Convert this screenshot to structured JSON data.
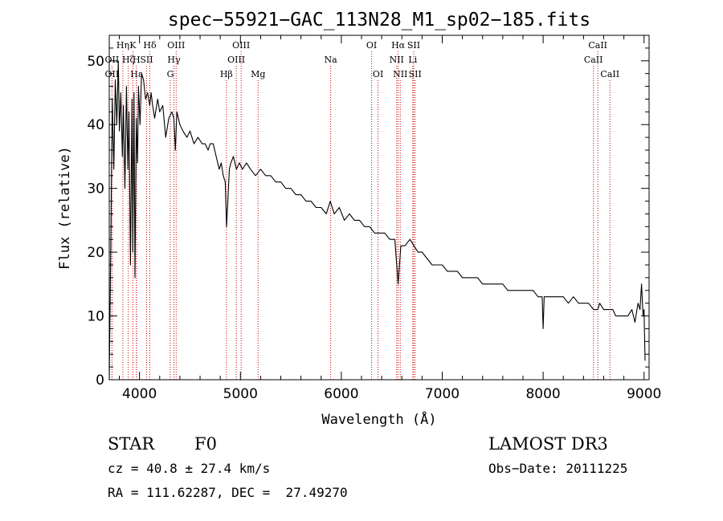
{
  "chart_data": {
    "type": "line",
    "title": "spec−55921−GAC_113N28_M1_sp02−185.fits",
    "xlabel": "Wavelength (Å)",
    "ylabel": "Flux (relative)",
    "xlim": [
      3700,
      9050
    ],
    "ylim": [
      0,
      54
    ],
    "xticks": [
      4000,
      5000,
      6000,
      7000,
      8000,
      9000
    ],
    "yticks": [
      0,
      10,
      20,
      30,
      40,
      50
    ],
    "grid": false,
    "series": [
      {
        "name": "flux",
        "x": [
          3700,
          3715,
          3730,
          3745,
          3760,
          3775,
          3790,
          3800,
          3815,
          3830,
          3840,
          3855,
          3870,
          3885,
          3895,
          3910,
          3925,
          3933,
          3945,
          3955,
          3968,
          3980,
          3990,
          4005,
          4020,
          4040,
          4060,
          4080,
          4101,
          4115,
          4130,
          4150,
          4180,
          4200,
          4230,
          4260,
          4290,
          4320,
          4340,
          4355,
          4370,
          4400,
          4430,
          4470,
          4500,
          4540,
          4580,
          4620,
          4650,
          4680,
          4700,
          4730,
          4760,
          4790,
          4810,
          4830,
          4850,
          4862,
          4875,
          4890,
          4905,
          4930,
          4960,
          4990,
          5020,
          5060,
          5100,
          5150,
          5200,
          5250,
          5300,
          5350,
          5400,
          5450,
          5500,
          5550,
          5600,
          5650,
          5700,
          5750,
          5800,
          5850,
          5890,
          5930,
          5980,
          6030,
          6080,
          6130,
          6180,
          6230,
          6280,
          6330,
          6380,
          6430,
          6480,
          6530,
          6563,
          6590,
          6630,
          6680,
          6720,
          6760,
          6800,
          6850,
          6900,
          6950,
          7000,
          7050,
          7100,
          7150,
          7200,
          7250,
          7300,
          7350,
          7400,
          7450,
          7500,
          7550,
          7600,
          7650,
          7700,
          7750,
          7800,
          7850,
          7900,
          7950,
          7990,
          8000,
          8010,
          8050,
          8100,
          8150,
          8200,
          8250,
          8300,
          8350,
          8400,
          8450,
          8500,
          8542,
          8560,
          8600,
          8640,
          8662,
          8690,
          8720,
          8750,
          8800,
          8840,
          8880,
          8910,
          8940,
          8960,
          8975,
          8990,
          9000,
          9010
        ],
        "y": [
          0,
          21,
          44,
          33,
          47,
          40,
          50,
          39,
          45,
          35,
          43,
          30,
          46,
          33,
          42,
          18,
          44,
          20,
          45,
          16,
          41,
          34,
          46,
          40,
          48,
          47,
          44,
          45,
          43,
          45,
          43,
          41,
          44,
          42,
          43,
          38,
          41,
          42,
          41,
          36,
          42,
          40,
          39,
          38,
          39,
          37,
          38,
          37,
          37,
          36,
          37,
          37,
          35,
          33,
          34,
          32,
          31,
          24,
          28,
          33,
          34,
          35,
          33,
          34,
          33,
          34,
          33,
          32,
          33,
          32,
          32,
          31,
          31,
          30,
          30,
          29,
          29,
          28,
          28,
          27,
          27,
          26,
          28,
          26,
          27,
          25,
          26,
          25,
          25,
          24,
          24,
          23,
          23,
          23,
          22,
          22,
          15,
          21,
          21,
          22,
          21,
          20,
          20,
          19,
          18,
          18,
          18,
          17,
          17,
          17,
          16,
          16,
          16,
          16,
          15,
          15,
          15,
          15,
          15,
          14,
          14,
          14,
          14,
          14,
          14,
          13,
          13,
          8,
          13,
          13,
          13,
          13,
          13,
          12,
          13,
          12,
          12,
          12,
          11,
          11,
          12,
          11,
          11,
          11,
          11,
          10,
          10,
          10,
          10,
          11,
          9,
          12,
          11,
          15,
          10,
          11,
          3
        ],
        "color": "#000000"
      }
    ],
    "spectral_lines": [
      {
        "label": "Hη",
        "wavelength": 3835,
        "row": 0
      },
      {
        "label": "OII",
        "wavelength": 3727,
        "row": 1
      },
      {
        "label": "Hζ",
        "wavelength": 3889,
        "row": 1
      },
      {
        "label": "OII",
        "wavelength": 3727,
        "row": 2
      },
      {
        "label": "Hε",
        "wavelength": 3970,
        "row": 2
      },
      {
        "label": "K",
        "wavelength": 3934,
        "row": 0
      },
      {
        "label": "H",
        "wavelength": 3969,
        "row": 1
      },
      {
        "label": "Hδ",
        "wavelength": 4102,
        "row": 0
      },
      {
        "label": "SII",
        "wavelength": 4070,
        "row": 1
      },
      {
        "label": "OIII",
        "wavelength": 4363,
        "row": 0
      },
      {
        "label": "Hγ",
        "wavelength": 4341,
        "row": 1
      },
      {
        "label": "G",
        "wavelength": 4305,
        "row": 2
      },
      {
        "label": "OIII",
        "wavelength": 5007,
        "row": 0
      },
      {
        "label": "OIII",
        "wavelength": 4959,
        "row": 1
      },
      {
        "label": "Hβ",
        "wavelength": 4861,
        "row": 2
      },
      {
        "label": "Mg",
        "wavelength": 5175,
        "row": 2
      },
      {
        "label": "Na",
        "wavelength": 5894,
        "row": 1
      },
      {
        "label": "OI",
        "wavelength": 6300,
        "row": 0
      },
      {
        "label": "OI",
        "wavelength": 6364,
        "row": 2
      },
      {
        "label": "Hα",
        "wavelength": 6563,
        "row": 0
      },
      {
        "label": "NII",
        "wavelength": 6548,
        "row": 1
      },
      {
        "label": "NII",
        "wavelength": 6584,
        "row": 2
      },
      {
        "label": "SII",
        "wavelength": 6717,
        "row": 0
      },
      {
        "label": "Li",
        "wavelength": 6708,
        "row": 1
      },
      {
        "label": "SII",
        "wavelength": 6731,
        "row": 2
      },
      {
        "label": "CaII",
        "wavelength": 8542,
        "row": 0
      },
      {
        "label": "CaII",
        "wavelength": 8498,
        "row": 1
      },
      {
        "label": "CaII",
        "wavelength": 8662,
        "row": 2
      }
    ],
    "annotations": {
      "object_class": "STAR",
      "subclass": "F0",
      "survey": "LAMOST DR3",
      "cz": "cz = 40.8 ± 27.4 km/s",
      "obs_date": "Obs−Date: 20111225",
      "coords": "RA = 111.62287, DEC =  27.49270"
    }
  }
}
